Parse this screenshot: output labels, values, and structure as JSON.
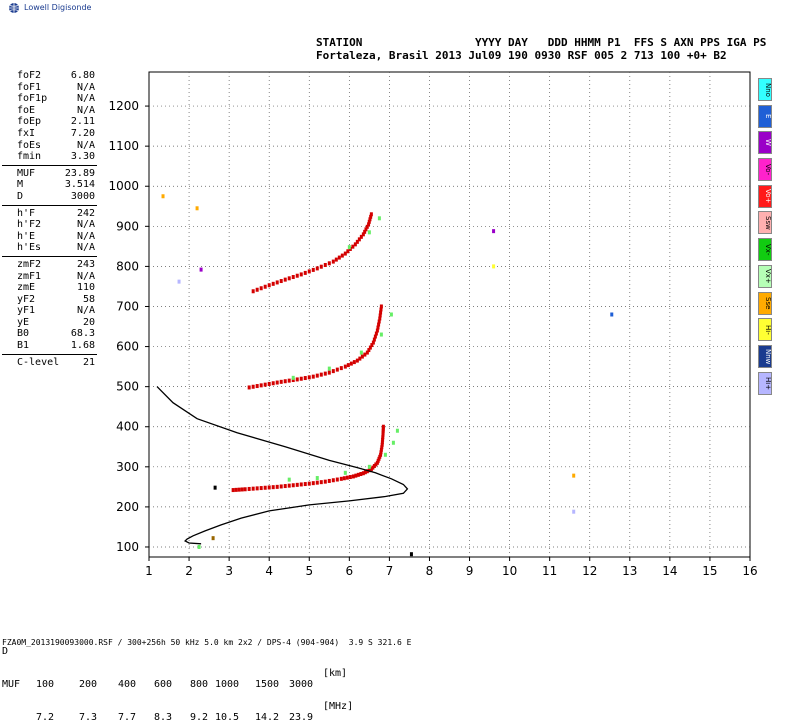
{
  "brand": {
    "logo_text": "Lowell Digisonde"
  },
  "header": {
    "labels": "STATION                 YYYY DAY   DDD HHMM P1  FFS S AXN PPS IGA PS",
    "values": "Fortaleza, Brasil 2013 Jul09 190 0930 RSF 005 2 713 100 +0+ B2"
  },
  "params": [
    {
      "name": "foF2",
      "value": "6.80"
    },
    {
      "name": "foF1",
      "value": "N/A"
    },
    {
      "name": "foF1p",
      "value": "N/A"
    },
    {
      "name": "foE",
      "value": "N/A"
    },
    {
      "name": "foEp",
      "value": "2.11"
    },
    {
      "name": "fxI",
      "value": "7.20"
    },
    {
      "name": "foEs",
      "value": "N/A"
    },
    {
      "name": "fmin",
      "value": "3.30"
    },
    {
      "sep": true
    },
    {
      "name": "MUF",
      "value": "23.89"
    },
    {
      "name": "M",
      "value": "3.514"
    },
    {
      "name": "D",
      "value": "3000"
    },
    {
      "sep": true
    },
    {
      "name": "h'F",
      "value": "242"
    },
    {
      "name": "h'F2",
      "value": "N/A"
    },
    {
      "name": "h'E",
      "value": "N/A"
    },
    {
      "name": "h'Es",
      "value": "N/A"
    },
    {
      "sep": true
    },
    {
      "name": "zmF2",
      "value": "243"
    },
    {
      "name": "zmF1",
      "value": "N/A"
    },
    {
      "name": "zmE",
      "value": "110"
    },
    {
      "name": "yF2",
      "value": "58"
    },
    {
      "name": "yF1",
      "value": "N/A"
    },
    {
      "name": "yE",
      "value": "20"
    },
    {
      "name": "B0",
      "value": "68.3"
    },
    {
      "name": "B1",
      "value": "1.68"
    },
    {
      "sep": true
    },
    {
      "name": "C-level",
      "value": "21"
    }
  ],
  "legend": [
    {
      "label": "Nno",
      "color": "#33ffff"
    },
    {
      "label": "E",
      "color": "#1f5fd6"
    },
    {
      "label": "W",
      "color": "#9a00c8"
    },
    {
      "label": "Vo-",
      "color": "#ff22cc"
    },
    {
      "label": "Vo+",
      "color": "#ff1a1a"
    },
    {
      "label": "Ssw",
      "color": "#ffb0b0"
    },
    {
      "label": "Vx-",
      "color": "#11cc11"
    },
    {
      "label": "Vx+",
      "color": "#b6ffb6"
    },
    {
      "label": "Sse",
      "color": "#ffaa00"
    },
    {
      "label": "Hi-",
      "color": "#ffff33"
    },
    {
      "label": "Nnw",
      "color": "#1a3b8f"
    },
    {
      "label": "Hi+",
      "color": "#b6b6ff"
    }
  ],
  "muf_table": {
    "d_label": "D",
    "muf_label": "MUF",
    "distances": [
      "100",
      "200",
      "400",
      "600",
      "800",
      "1000",
      "1500",
      "3000"
    ],
    "mufs": [
      "7.2",
      "7.3",
      "7.7",
      "8.3",
      "9.2",
      "10.5",
      "14.2",
      "23.9"
    ],
    "d_unit": "[km]",
    "muf_unit": "[MHz]"
  },
  "footer": "FZA0M_2013190093000.RSF / 300+256h 50 kHz 5.0 km 2x2 / DPS-4 (904-904)  3.9 S 321.6 E",
  "chart_data": {
    "type": "scatter",
    "xlim": [
      1,
      16
    ],
    "ylim": [
      75,
      1285
    ],
    "xticks": [
      1,
      2,
      3,
      4,
      5,
      6,
      7,
      8,
      9,
      10,
      11,
      12,
      13,
      14,
      15,
      16
    ],
    "yticks": [
      100,
      200,
      300,
      400,
      500,
      600,
      700,
      800,
      900,
      1000,
      1100,
      1200
    ],
    "grid": true,
    "series": [
      {
        "trace": "F2 first hop",
        "color": "#d40000",
        "points": [
          [
            3.1,
            242
          ],
          [
            3.4,
            244
          ],
          [
            3.8,
            247
          ],
          [
            4.2,
            250
          ],
          [
            4.6,
            254
          ],
          [
            5.0,
            258
          ],
          [
            5.4,
            263
          ],
          [
            5.8,
            270
          ],
          [
            6.1,
            276
          ],
          [
            6.35,
            284
          ],
          [
            6.55,
            294
          ],
          [
            6.7,
            310
          ],
          [
            6.78,
            330
          ],
          [
            6.82,
            355
          ],
          [
            6.84,
            380
          ],
          [
            6.85,
            400
          ]
        ]
      },
      {
        "trace": "F2 second hop",
        "color": "#d40000",
        "points": [
          [
            3.5,
            498
          ],
          [
            3.9,
            505
          ],
          [
            4.3,
            512
          ],
          [
            4.7,
            518
          ],
          [
            5.1,
            525
          ],
          [
            5.5,
            535
          ],
          [
            5.9,
            550
          ],
          [
            6.2,
            565
          ],
          [
            6.45,
            585
          ],
          [
            6.6,
            610
          ],
          [
            6.7,
            640
          ],
          [
            6.76,
            670
          ],
          [
            6.8,
            700
          ]
        ]
      },
      {
        "trace": "F2 third hop",
        "color": "#d40000",
        "points": [
          [
            3.6,
            738
          ],
          [
            4.0,
            753
          ],
          [
            4.4,
            767
          ],
          [
            4.8,
            780
          ],
          [
            5.2,
            795
          ],
          [
            5.6,
            812
          ],
          [
            5.9,
            832
          ],
          [
            6.15,
            855
          ],
          [
            6.35,
            880
          ],
          [
            6.48,
            905
          ],
          [
            6.55,
            930
          ]
        ]
      },
      {
        "trace": "extraordinary",
        "color": "#66ee66",
        "points": [
          [
            4.5,
            268
          ],
          [
            5.2,
            272
          ],
          [
            5.9,
            285
          ],
          [
            6.5,
            300
          ],
          [
            6.9,
            330
          ],
          [
            7.1,
            360
          ],
          [
            7.2,
            390
          ],
          [
            4.6,
            522
          ],
          [
            5.5,
            545
          ],
          [
            6.3,
            585
          ],
          [
            6.8,
            630
          ],
          [
            7.05,
            680
          ],
          [
            6.0,
            848
          ],
          [
            6.5,
            885
          ],
          [
            6.75,
            920
          ]
        ]
      },
      {
        "trace": "profile",
        "color": "#000000",
        "points": [
          [
            1.2,
            500
          ],
          [
            1.6,
            460
          ],
          [
            2.2,
            420
          ],
          [
            3.2,
            385
          ],
          [
            4.4,
            350
          ],
          [
            5.5,
            316
          ],
          [
            6.2,
            298
          ],
          [
            6.65,
            285
          ],
          [
            7.05,
            270
          ],
          [
            7.35,
            256
          ],
          [
            7.45,
            245
          ],
          [
            7.35,
            234
          ],
          [
            6.9,
            226
          ],
          [
            6.0,
            215
          ],
          [
            5.0,
            205
          ],
          [
            4.0,
            190
          ],
          [
            3.3,
            172
          ],
          [
            2.8,
            155
          ],
          [
            2.4,
            140
          ],
          [
            2.1,
            128
          ],
          [
            1.95,
            120
          ],
          [
            1.9,
            115
          ],
          [
            2.0,
            110
          ],
          [
            2.3,
            108
          ]
        ]
      }
    ],
    "noise": [
      {
        "x": 1.35,
        "y": 975,
        "color": "#ffaa00"
      },
      {
        "x": 2.2,
        "y": 945,
        "color": "#ffaa00"
      },
      {
        "x": 1.75,
        "y": 762,
        "color": "#b6b6ff"
      },
      {
        "x": 2.3,
        "y": 792,
        "color": "#9a00c8"
      },
      {
        "x": 9.6,
        "y": 888,
        "color": "#9a00c8"
      },
      {
        "x": 9.6,
        "y": 800,
        "color": "#ffff33"
      },
      {
        "x": 12.55,
        "y": 680,
        "color": "#1f5fd6"
      },
      {
        "x": 11.6,
        "y": 278,
        "color": "#ffaa00"
      },
      {
        "x": 11.6,
        "y": 188,
        "color": "#b6b6ff"
      },
      {
        "x": 2.65,
        "y": 248,
        "color": "#000000"
      },
      {
        "x": 7.55,
        "y": 82,
        "color": "#000000"
      },
      {
        "x": 2.6,
        "y": 122,
        "color": "#996600"
      },
      {
        "x": 2.25,
        "y": 100,
        "color": "#66ee66"
      }
    ]
  }
}
